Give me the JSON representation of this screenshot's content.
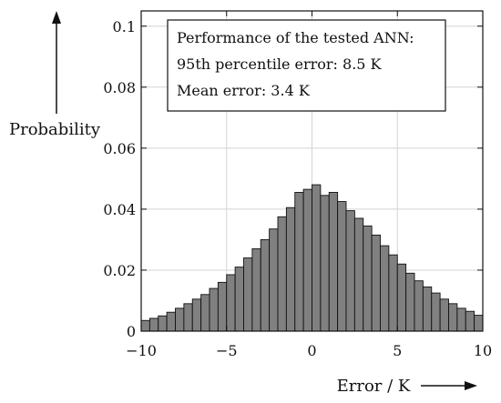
{
  "chart_data": {
    "type": "bar",
    "title": "",
    "xlabel": "Error / K",
    "ylabel": "Probability",
    "xlim": [
      -10,
      10
    ],
    "ylim": [
      0,
      0.105
    ],
    "xticks": [
      -10,
      -5,
      0,
      5,
      10
    ],
    "xtick_labels": [
      "−10",
      "−5",
      "0",
      "5",
      "10"
    ],
    "yticks": [
      0,
      0.02,
      0.04,
      0.06,
      0.08,
      0.1
    ],
    "ytick_labels": [
      "0",
      "0.02",
      "0.04",
      "0.06",
      "0.08",
      "0.1"
    ],
    "grid": true,
    "bar_color": "#808080",
    "bar_edge_color": "#111111",
    "bins": [
      {
        "x0": -10.0,
        "x1": -9.5,
        "value": 0.0035
      },
      {
        "x0": -9.5,
        "x1": -9.0,
        "value": 0.0042
      },
      {
        "x0": -9.0,
        "x1": -8.5,
        "value": 0.005
      },
      {
        "x0": -8.5,
        "x1": -8.0,
        "value": 0.0062
      },
      {
        "x0": -8.0,
        "x1": -7.5,
        "value": 0.0075
      },
      {
        "x0": -7.5,
        "x1": -7.0,
        "value": 0.009
      },
      {
        "x0": -7.0,
        "x1": -6.5,
        "value": 0.0105
      },
      {
        "x0": -6.5,
        "x1": -6.0,
        "value": 0.012
      },
      {
        "x0": -6.0,
        "x1": -5.5,
        "value": 0.014
      },
      {
        "x0": -5.5,
        "x1": -5.0,
        "value": 0.016
      },
      {
        "x0": -5.0,
        "x1": -4.5,
        "value": 0.0185
      },
      {
        "x0": -4.5,
        "x1": -4.0,
        "value": 0.021
      },
      {
        "x0": -4.0,
        "x1": -3.5,
        "value": 0.024
      },
      {
        "x0": -3.5,
        "x1": -3.0,
        "value": 0.027
      },
      {
        "x0": -3.0,
        "x1": -2.5,
        "value": 0.03
      },
      {
        "x0": -2.5,
        "x1": -2.0,
        "value": 0.0335
      },
      {
        "x0": -2.0,
        "x1": -1.5,
        "value": 0.0375
      },
      {
        "x0": -1.5,
        "x1": -1.0,
        "value": 0.0405
      },
      {
        "x0": -1.0,
        "x1": -0.5,
        "value": 0.0455
      },
      {
        "x0": -0.5,
        "x1": 0.0,
        "value": 0.0465
      },
      {
        "x0": 0.0,
        "x1": 0.5,
        "value": 0.048
      },
      {
        "x0": 0.5,
        "x1": 1.0,
        "value": 0.0445
      },
      {
        "x0": 1.0,
        "x1": 1.5,
        "value": 0.0455
      },
      {
        "x0": 1.5,
        "x1": 2.0,
        "value": 0.0425
      },
      {
        "x0": 2.0,
        "x1": 2.5,
        "value": 0.0395
      },
      {
        "x0": 2.5,
        "x1": 3.0,
        "value": 0.037
      },
      {
        "x0": 3.0,
        "x1": 3.5,
        "value": 0.0345
      },
      {
        "x0": 3.5,
        "x1": 4.0,
        "value": 0.0315
      },
      {
        "x0": 4.0,
        "x1": 4.5,
        "value": 0.028
      },
      {
        "x0": 4.5,
        "x1": 5.0,
        "value": 0.025
      },
      {
        "x0": 5.0,
        "x1": 5.5,
        "value": 0.022
      },
      {
        "x0": 5.5,
        "x1": 6.0,
        "value": 0.019
      },
      {
        "x0": 6.0,
        "x1": 6.5,
        "value": 0.0165
      },
      {
        "x0": 6.5,
        "x1": 7.0,
        "value": 0.0145
      },
      {
        "x0": 7.0,
        "x1": 7.5,
        "value": 0.0125
      },
      {
        "x0": 7.5,
        "x1": 8.0,
        "value": 0.0105
      },
      {
        "x0": 8.0,
        "x1": 8.5,
        "value": 0.009
      },
      {
        "x0": 8.5,
        "x1": 9.0,
        "value": 0.0075
      },
      {
        "x0": 9.0,
        "x1": 9.5,
        "value": 0.0065
      },
      {
        "x0": 9.5,
        "x1": 10.0,
        "value": 0.0052
      }
    ],
    "annotation": {
      "lines": [
        "Performance of the tested ANN:",
        "95th percentile error: 8.5 K",
        "Mean error: 3.4 K"
      ]
    }
  }
}
